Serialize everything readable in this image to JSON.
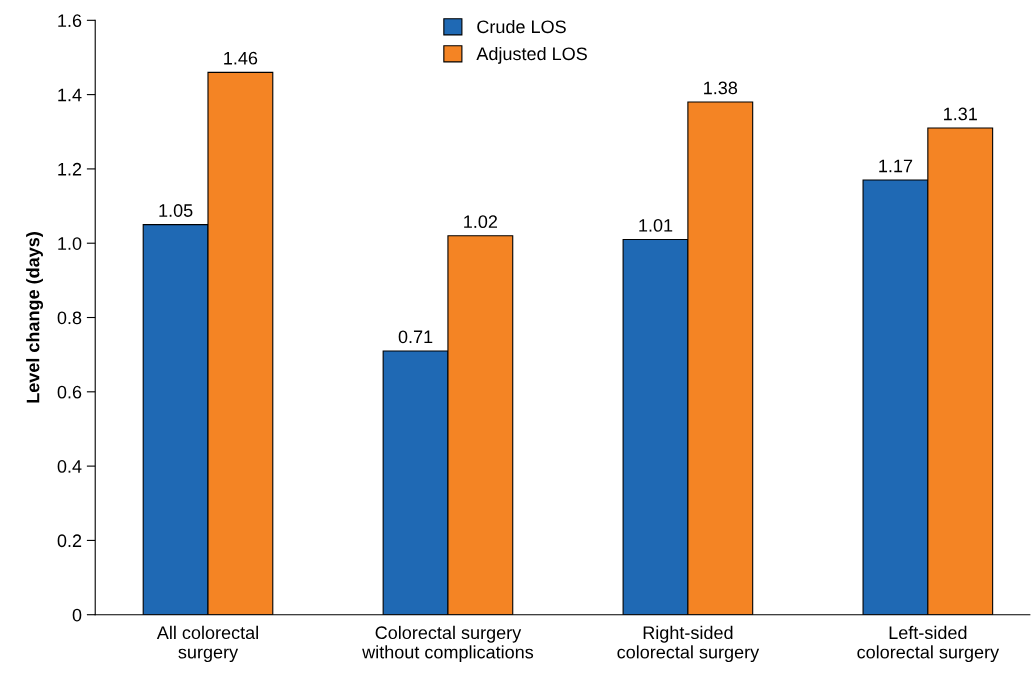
{
  "chart_data": {
    "type": "bar",
    "ylabel": "Level change (days)",
    "categories": [
      "All colorectal\nsurgery",
      "Colorectal surgery\nwithout complications",
      "Right-sided\ncolorectal surgery",
      "Left-sided\ncolorectal surgery"
    ],
    "series": [
      {
        "name": "Crude LOS",
        "color": "#1f69b4",
        "values": [
          1.05,
          0.71,
          1.01,
          1.17
        ]
      },
      {
        "name": "Adjusted LOS",
        "color": "#f48424",
        "values": [
          1.46,
          1.02,
          1.38,
          1.31
        ]
      }
    ],
    "ylim": [
      0,
      1.6
    ],
    "yticks": [
      {
        "value": 0,
        "label": "0"
      },
      0.2,
      0.4,
      0.6,
      0.8,
      {
        "value": 1,
        "label": "1.0"
      },
      1.2,
      1.4,
      1.6
    ],
    "data_labels": true,
    "legend": "top",
    "grid": false
  }
}
